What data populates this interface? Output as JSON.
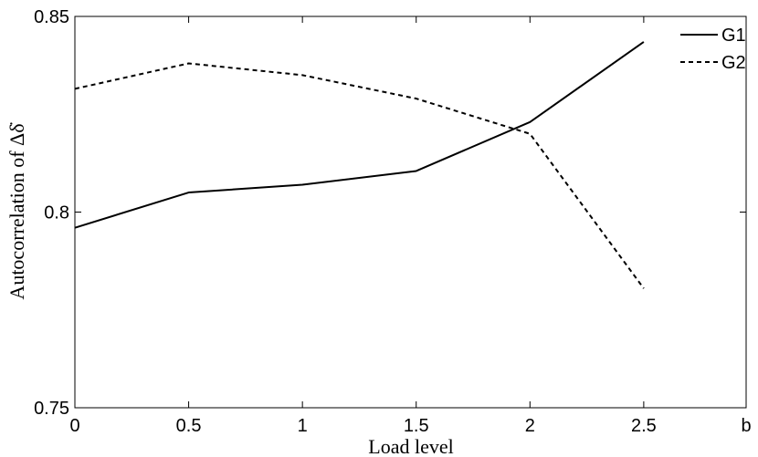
{
  "chart_data": {
    "type": "line",
    "xlabel": "Load level",
    "ylabel": "Autocorrelation of Δδ̇",
    "x": [
      0,
      0.5,
      1,
      1.5,
      2,
      2.5
    ],
    "xlim": [
      0,
      2.95
    ],
    "ylim": [
      0.75,
      0.85
    ],
    "x_ticks": [
      {
        "value": 0,
        "label": "0"
      },
      {
        "value": 0.5,
        "label": "0.5"
      },
      {
        "value": 1,
        "label": "1"
      },
      {
        "value": 1.5,
        "label": "1.5"
      },
      {
        "value": 2,
        "label": "2"
      },
      {
        "value": 2.5,
        "label": "2.5"
      },
      {
        "value": 2.95,
        "label": "b"
      }
    ],
    "y_ticks": [
      {
        "value": 0.75,
        "label": "0.75"
      },
      {
        "value": 0.8,
        "label": "0.8"
      },
      {
        "value": 0.85,
        "label": "0.85"
      }
    ],
    "series": [
      {
        "name": "G1",
        "style": "solid",
        "values": [
          0.796,
          0.805,
          0.807,
          0.8105,
          0.823,
          0.8435
        ]
      },
      {
        "name": "G2",
        "style": "dashed",
        "values": [
          0.8315,
          0.838,
          0.835,
          0.829,
          0.82,
          0.7805
        ]
      }
    ],
    "legend_position": "top-right",
    "grid": false,
    "colors": {
      "line": "#000000",
      "axis": "#000000"
    }
  }
}
